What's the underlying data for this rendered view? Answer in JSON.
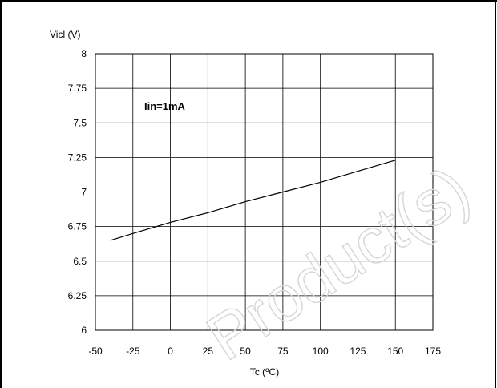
{
  "watermark": "Product(s)",
  "chart_data": {
    "type": "line",
    "title": "",
    "xlabel": "Tc (ºC)",
    "ylabel": "Vicl (V)",
    "xlim": [
      -50,
      175
    ],
    "ylim": [
      6,
      8
    ],
    "x_ticks": [
      -50,
      -25,
      0,
      25,
      50,
      75,
      100,
      125,
      150,
      175
    ],
    "y_ticks": [
      6,
      6.25,
      6.5,
      6.75,
      7,
      7.25,
      7.5,
      7.75,
      8
    ],
    "y_tick_labels": [
      "6",
      "6.25",
      "6.5",
      "6.75",
      "7",
      "7.25",
      "7.5",
      "7.75",
      "8"
    ],
    "grid": true,
    "annotation": "Iin=1mA",
    "series": [
      {
        "name": "",
        "x": [
          -40,
          -25,
          0,
          25,
          50,
          75,
          100,
          125,
          150
        ],
        "y": [
          6.65,
          6.7,
          6.78,
          6.85,
          6.93,
          7.0,
          7.07,
          7.15,
          7.23
        ]
      }
    ]
  }
}
